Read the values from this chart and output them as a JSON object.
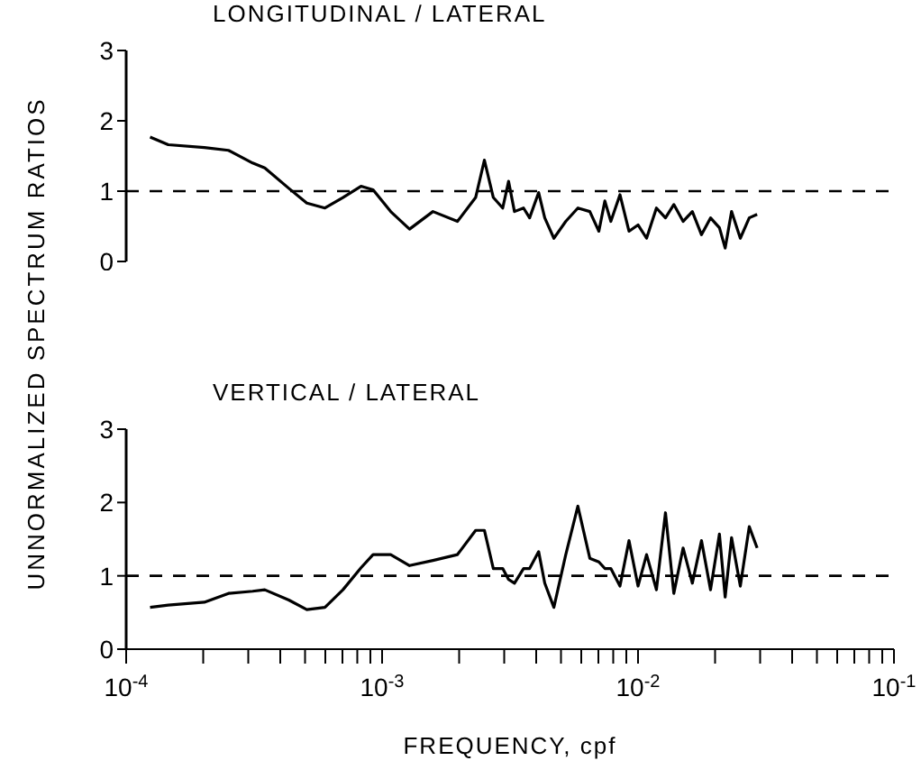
{
  "chart_data": [
    {
      "type": "line",
      "title": "LONGITUDINAL / LATERAL",
      "ylabel": "UNNORMALIZED SPECTRUM RATIOS",
      "log": "x",
      "marker": "none",
      "line_style": "solid",
      "tick_labels": "y",
      "x": [
        0.000124,
        0.000146,
        0.000202,
        0.000251,
        0.000312,
        0.000348,
        0.000432,
        0.000508,
        0.000598,
        0.000703,
        0.000827,
        0.000922,
        0.00108,
        0.00128,
        0.00158,
        0.00197,
        0.00232,
        0.00251,
        0.00272,
        0.00296,
        0.00312,
        0.00329,
        0.00357,
        0.00377,
        0.00409,
        0.00432,
        0.00469,
        0.00522,
        0.00582,
        0.00648,
        0.00703,
        0.00742,
        0.00783,
        0.0085,
        0.00922,
        0.01,
        0.0108,
        0.0118,
        0.0128,
        0.0138,
        0.015,
        0.0163,
        0.0177,
        0.0192,
        0.0208,
        0.0219,
        0.0232,
        0.0251,
        0.0272,
        0.0292
      ],
      "series": [
        {
          "color": "#000000",
          "values": [
            1.77,
            1.66,
            1.62,
            1.58,
            1.4,
            1.33,
            1.04,
            0.83,
            0.76,
            0.91,
            1.07,
            1.02,
            0.71,
            0.46,
            0.71,
            0.57,
            0.91,
            1.44,
            0.91,
            0.76,
            1.14,
            0.71,
            0.76,
            0.62,
            0.98,
            0.62,
            0.33,
            0.57,
            0.76,
            0.71,
            0.43,
            0.86,
            0.57,
            0.95,
            0.43,
            0.52,
            0.33,
            0.76,
            0.62,
            0.81,
            0.57,
            0.71,
            0.38,
            0.62,
            0.48,
            0.19,
            0.71,
            0.33,
            0.62,
            0.67
          ]
        }
      ],
      "xlim": [
        0.0001,
        0.1
      ],
      "ylim": [
        0,
        3
      ],
      "yticks": [
        0,
        1,
        2,
        3
      ],
      "ref_lines": [
        {
          "axis": "y",
          "value": 1,
          "line_style": "dashed",
          "color": "#000000"
        }
      ]
    },
    {
      "type": "line",
      "title": "VERTICAL / LATERAL",
      "xlabel": "FREQUENCY, cpf",
      "log": "x",
      "marker": "none",
      "line_style": "solid",
      "x": [
        0.000124,
        0.000146,
        0.000202,
        0.000251,
        0.000312,
        0.000348,
        0.000432,
        0.000508,
        0.000598,
        0.000703,
        0.000827,
        0.000922,
        0.00108,
        0.00128,
        0.00158,
        0.00197,
        0.00232,
        0.00251,
        0.00272,
        0.00296,
        0.00312,
        0.00329,
        0.00357,
        0.00377,
        0.00409,
        0.00432,
        0.00469,
        0.00522,
        0.00582,
        0.00648,
        0.00703,
        0.00742,
        0.00783,
        0.0085,
        0.00922,
        0.01,
        0.0108,
        0.0118,
        0.0128,
        0.0138,
        0.015,
        0.0163,
        0.0177,
        0.0192,
        0.0208,
        0.0219,
        0.0232,
        0.0251,
        0.0272,
        0.0292
      ],
      "series": [
        {
          "color": "#000000",
          "values": [
            0.57,
            0.6,
            0.64,
            0.76,
            0.79,
            0.81,
            0.67,
            0.54,
            0.57,
            0.81,
            1.11,
            1.29,
            1.29,
            1.14,
            1.21,
            1.29,
            1.62,
            1.62,
            1.1,
            1.1,
            0.95,
            0.9,
            1.1,
            1.1,
            1.33,
            0.9,
            0.57,
            1.29,
            1.95,
            1.24,
            1.19,
            1.1,
            1.1,
            0.86,
            1.48,
            0.86,
            1.29,
            0.81,
            1.86,
            0.76,
            1.38,
            0.9,
            1.48,
            0.81,
            1.57,
            0.71,
            1.52,
            0.86,
            1.67,
            1.38
          ]
        }
      ],
      "xlim": [
        0.0001,
        0.1
      ],
      "xticks": [
        {
          "value": 0.0001,
          "label": "10$^{-4}$"
        },
        {
          "value": 0.0002,
          "label": null
        },
        {
          "value": 0.0003,
          "label": null
        },
        {
          "value": 0.0004,
          "label": null
        },
        {
          "value": 0.0005,
          "label": null
        },
        {
          "value": 0.0006,
          "label": null
        },
        {
          "value": 0.0007,
          "label": null
        },
        {
          "value": 0.0008,
          "label": null
        },
        {
          "value": 0.0009,
          "label": null
        },
        {
          "value": 0.001,
          "label": "10$^{-3}$"
        },
        {
          "value": 0.002,
          "label": null
        },
        {
          "value": 0.003,
          "label": null
        },
        {
          "value": 0.004,
          "label": null
        },
        {
          "value": 0.005,
          "label": null
        },
        {
          "value": 0.006,
          "label": null
        },
        {
          "value": 0.007,
          "label": null
        },
        {
          "value": 0.008,
          "label": null
        },
        {
          "value": 0.009,
          "label": null
        },
        {
          "value": 0.01,
          "label": "10$^{-2}$"
        },
        {
          "value": 0.02,
          "label": null
        },
        {
          "value": 0.03,
          "label": null
        },
        {
          "value": 0.04,
          "label": null
        },
        {
          "value": 0.05,
          "label": null
        },
        {
          "value": 0.06,
          "label": null
        },
        {
          "value": 0.07,
          "label": null
        },
        {
          "value": 0.08,
          "label": null
        },
        {
          "value": 0.09,
          "label": null
        },
        {
          "value": 0.1,
          "label": "10$^{-1}$"
        }
      ],
      "ylim": [
        0,
        3
      ],
      "yticks": [
        0,
        1,
        2,
        3
      ],
      "ref_lines": [
        {
          "axis": "y",
          "value": 1,
          "line_style": "dashed",
          "color": "#000000"
        }
      ]
    }
  ]
}
